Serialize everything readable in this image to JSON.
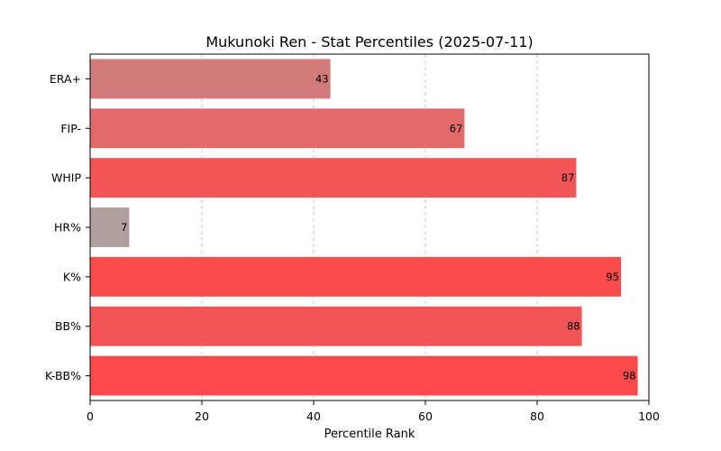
{
  "chart_data": {
    "type": "bar",
    "orientation": "horizontal",
    "title": "Mukunoki Ren - Stat Percentiles (2025-07-11)",
    "xlabel": "Percentile Rank",
    "ylabel": "",
    "xlim": [
      0,
      100
    ],
    "x_ticks": [
      "0",
      "20",
      "40",
      "60",
      "80",
      "100"
    ],
    "grid": "vertical-dashed",
    "categories": [
      "ERA+",
      "FIP-",
      "WHIP",
      "HR%",
      "K%",
      "BB%",
      "K-BB%"
    ],
    "values": [
      43,
      67,
      87,
      7,
      95,
      88,
      98
    ],
    "data_labels": [
      "43",
      "67",
      "87",
      "7",
      "95",
      "88",
      "98"
    ],
    "colors": [
      "#d37b7b",
      "#e36a6a",
      "#f25555",
      "#af9f9f",
      "#fd4a4a",
      "#f25555",
      "#fe4a4a"
    ]
  }
}
